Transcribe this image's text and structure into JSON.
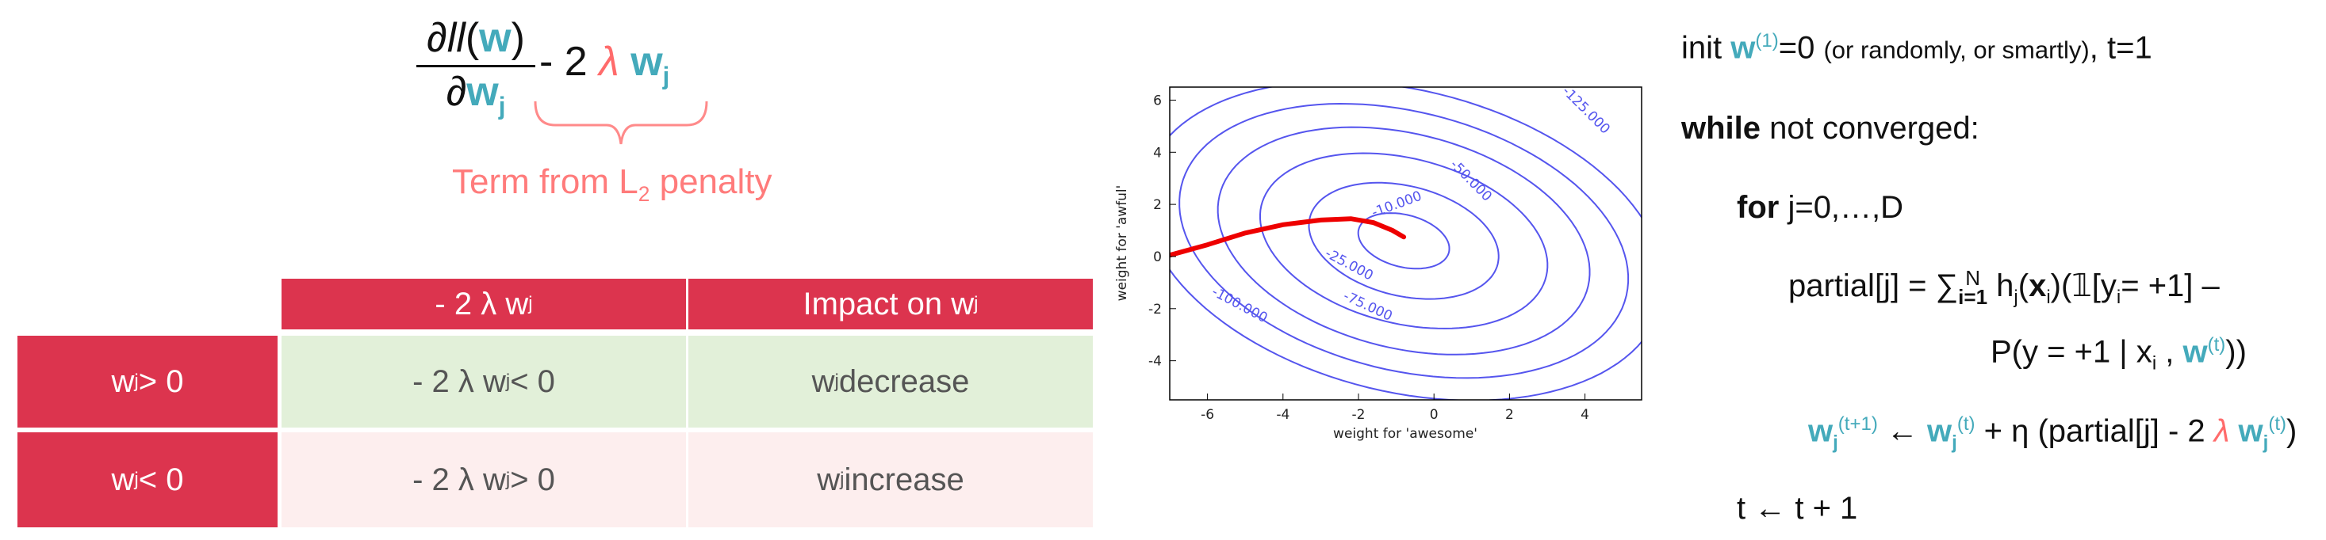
{
  "gradient": {
    "numerator_prefix": "∂",
    "numerator_ll": "ll",
    "numerator_w": "w",
    "denominator_prefix": "∂",
    "denominator_w": "w",
    "denominator_sub": "j",
    "penalty_text": "- 2",
    "lambda": "λ",
    "penalty_w": "w",
    "penalty_sub": "j",
    "brace_label_pre": "Term from L",
    "brace_label_sub": "2",
    "brace_label_post": " penalty"
  },
  "table": {
    "col1_header": "- 2 λ w",
    "col1_header_sub": "j",
    "col2_header": "Impact on w",
    "col2_header_sub": "j",
    "rows": [
      {
        "cond": "w",
        "cond_sub": "j",
        "cond_rest": " > 0",
        "term": "- 2 λ w",
        "term_sub": "j",
        "term_rest": " < 0",
        "impact": "w",
        "impact_sub": "j",
        "impact_rest": " decrease"
      },
      {
        "cond": "w",
        "cond_sub": "j",
        "cond_rest": " < 0",
        "term": "- 2 λ w",
        "term_sub": "j",
        "term_rest": " > 0",
        "impact": "w",
        "impact_sub": "j",
        "impact_rest": " increase"
      }
    ]
  },
  "colors": {
    "header_red": "#dc344e",
    "green_cell": "#e2f0d9",
    "pink_cell": "#fdeeee",
    "teal": "#44aabb",
    "penalty_red": "#ff6b6b",
    "contour_blue": "#5555ee",
    "path_red": "#ee0000"
  },
  "chart_data": {
    "type": "contour",
    "xlabel": "weight for 'awesome'",
    "ylabel": "weight for 'awful'",
    "xlim": [
      -7,
      5.5
    ],
    "ylim": [
      -5.5,
      6.5
    ],
    "xticks": [
      -6,
      -4,
      -2,
      0,
      2,
      4
    ],
    "yticks": [
      -4,
      -2,
      0,
      2,
      4,
      6
    ],
    "center": [
      -0.8,
      0.6
    ],
    "levels": [
      {
        "value": "-10.000",
        "rx": 1.3,
        "ry": 0.95
      },
      {
        "value": "-25.000",
        "rx": 2.7,
        "ry": 2.0
      },
      {
        "value": "-50.000",
        "rx": 4.1,
        "ry": 3.0
      },
      {
        "value": "-75.000",
        "rx": 5.3,
        "ry": 3.9
      },
      {
        "value": "-100.000",
        "rx": 6.4,
        "ry": 4.7
      },
      {
        "value": "-125.000",
        "rx": 7.4,
        "ry": 5.5
      }
    ],
    "path": [
      [
        -7,
        0.05
      ],
      [
        -6,
        0.45
      ],
      [
        -5,
        0.9
      ],
      [
        -4,
        1.22
      ],
      [
        -3,
        1.4
      ],
      [
        -2.2,
        1.45
      ],
      [
        -1.6,
        1.3
      ],
      [
        -1.1,
        1.0
      ],
      [
        -0.8,
        0.75
      ]
    ]
  },
  "algorithm": {
    "line1_pre": "init ",
    "line1_w": "w",
    "line1_sup": "(1)",
    "line1_mid": "=0 ",
    "line1_small": "(or randomly, or smartly)",
    "line1_post": ", t=1",
    "while_kw": "while",
    "while_rest": " not converged:",
    "for_kw": "for",
    "for_rest": " j=0,…,D",
    "partial_pre": "partial[j] = ∑",
    "partial_sum_sup": "N",
    "partial_sum_sub": "i=1",
    "partial_h": " h",
    "partial_h_sub": "j",
    "partial_x_open": "(",
    "partial_x": "x",
    "partial_x_sub": "i",
    "partial_ind": ")(𝟙[y",
    "partial_y_sub": "i",
    "partial_post": "= +1] –",
    "prob_pre": "P(y = +1 | x",
    "prob_sub": "i",
    "prob_mid": " , ",
    "prob_w": "w",
    "prob_sup": "(t)",
    "prob_post": "))",
    "update_w": "w",
    "update_sub": "j",
    "update_sup": "(t+1)",
    "update_arrow": " ← ",
    "update_w2": "w",
    "update_sub2": "j",
    "update_sup2": "(t)",
    "update_mid": " + η (partial[j] - 2 ",
    "update_lambda": "λ",
    "update_w3": " w",
    "update_sub3": "j",
    "update_sup3": "(t)",
    "update_post": ")",
    "t_update": "t ← t + 1"
  }
}
